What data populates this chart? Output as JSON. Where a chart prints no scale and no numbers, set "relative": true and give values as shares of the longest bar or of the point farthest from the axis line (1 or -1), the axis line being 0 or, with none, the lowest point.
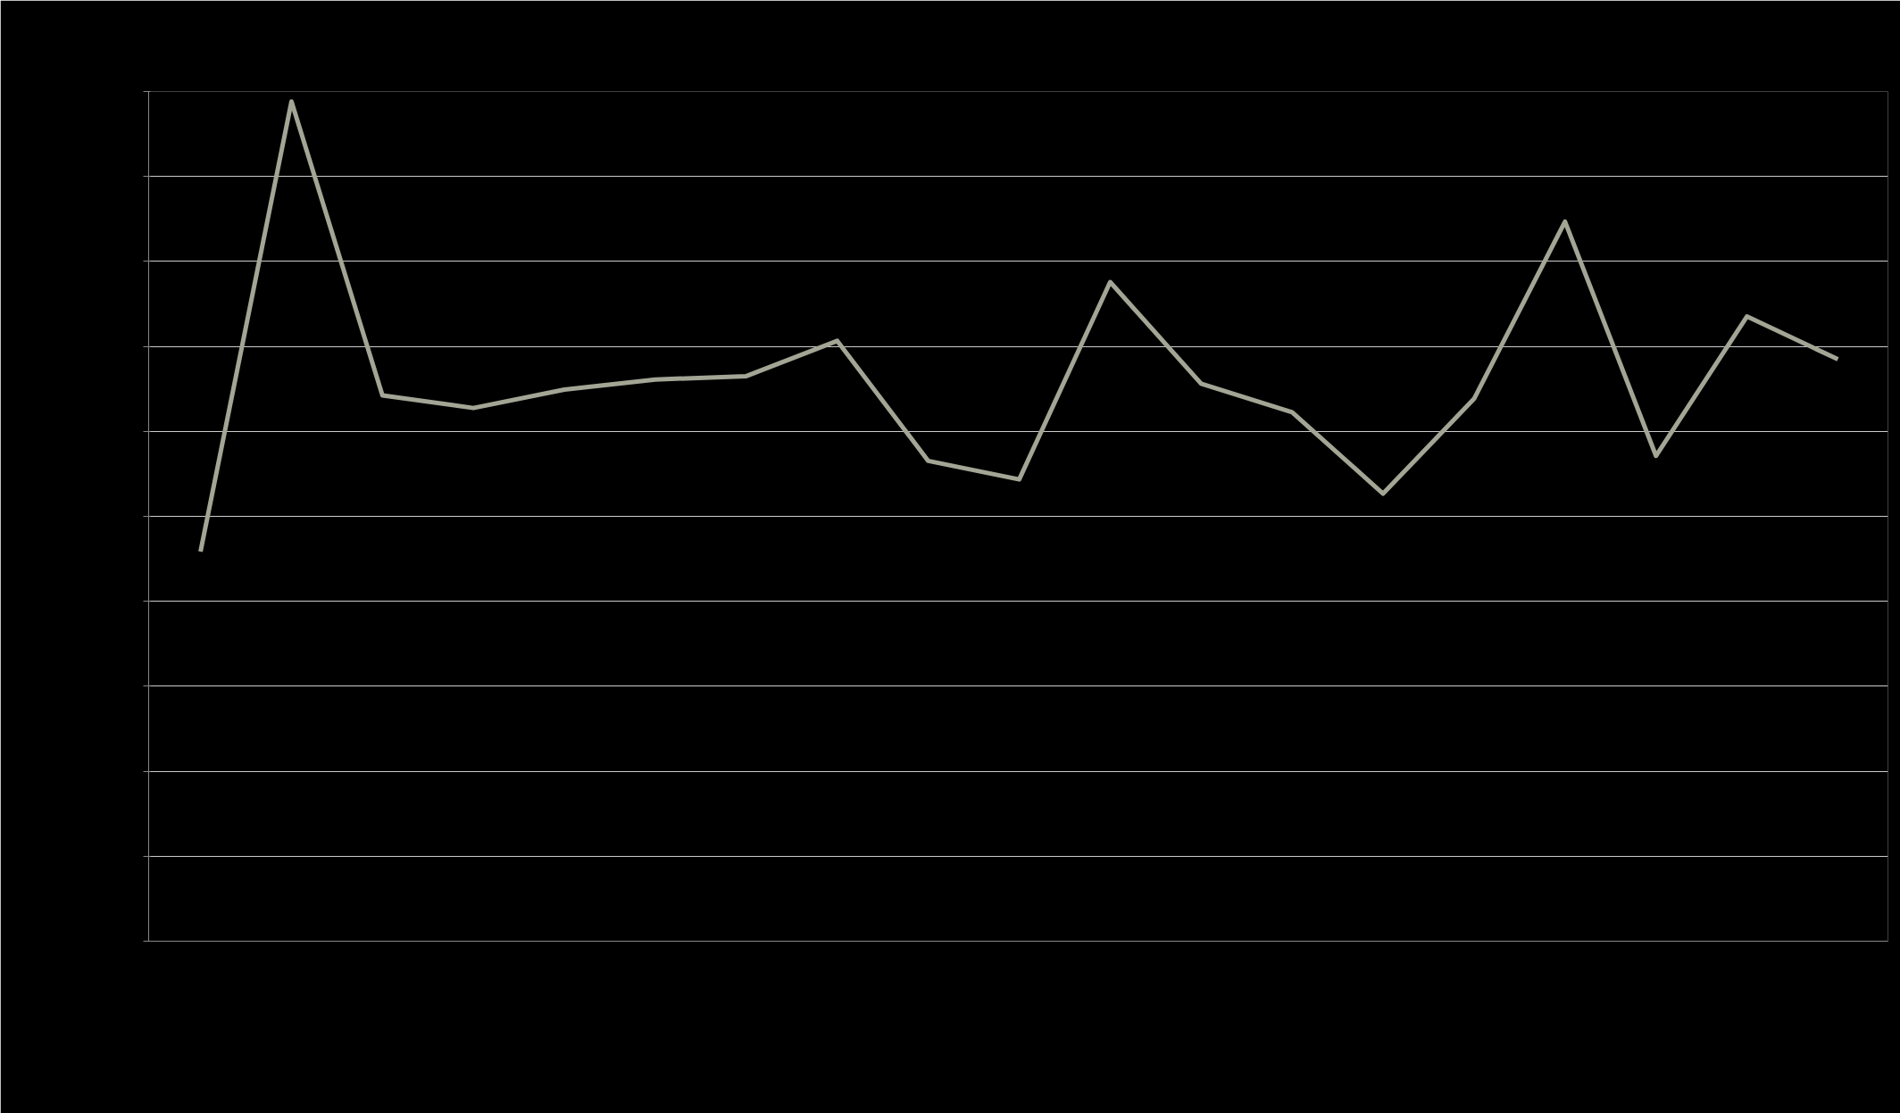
{
  "chart_data": {
    "type": "line",
    "relative": true,
    "categories": [
      null,
      null,
      null,
      null,
      null,
      null,
      null,
      null,
      null,
      null,
      null,
      null,
      null,
      null,
      null,
      null,
      null,
      null,
      null
    ],
    "series": [
      {
        "color": "#a3a595",
        "values": [
          0.464,
          1,
          0.65,
          0.635,
          0.657,
          0.669,
          0.673,
          0.715,
          0.572,
          0.55,
          0.785,
          0.664,
          0.63,
          0.533,
          0.646,
          0.857,
          0.578,
          0.744,
          0.693
        ]
      }
    ],
    "grid": "y",
    "marker": "none",
    "line_style": "solid"
  }
}
